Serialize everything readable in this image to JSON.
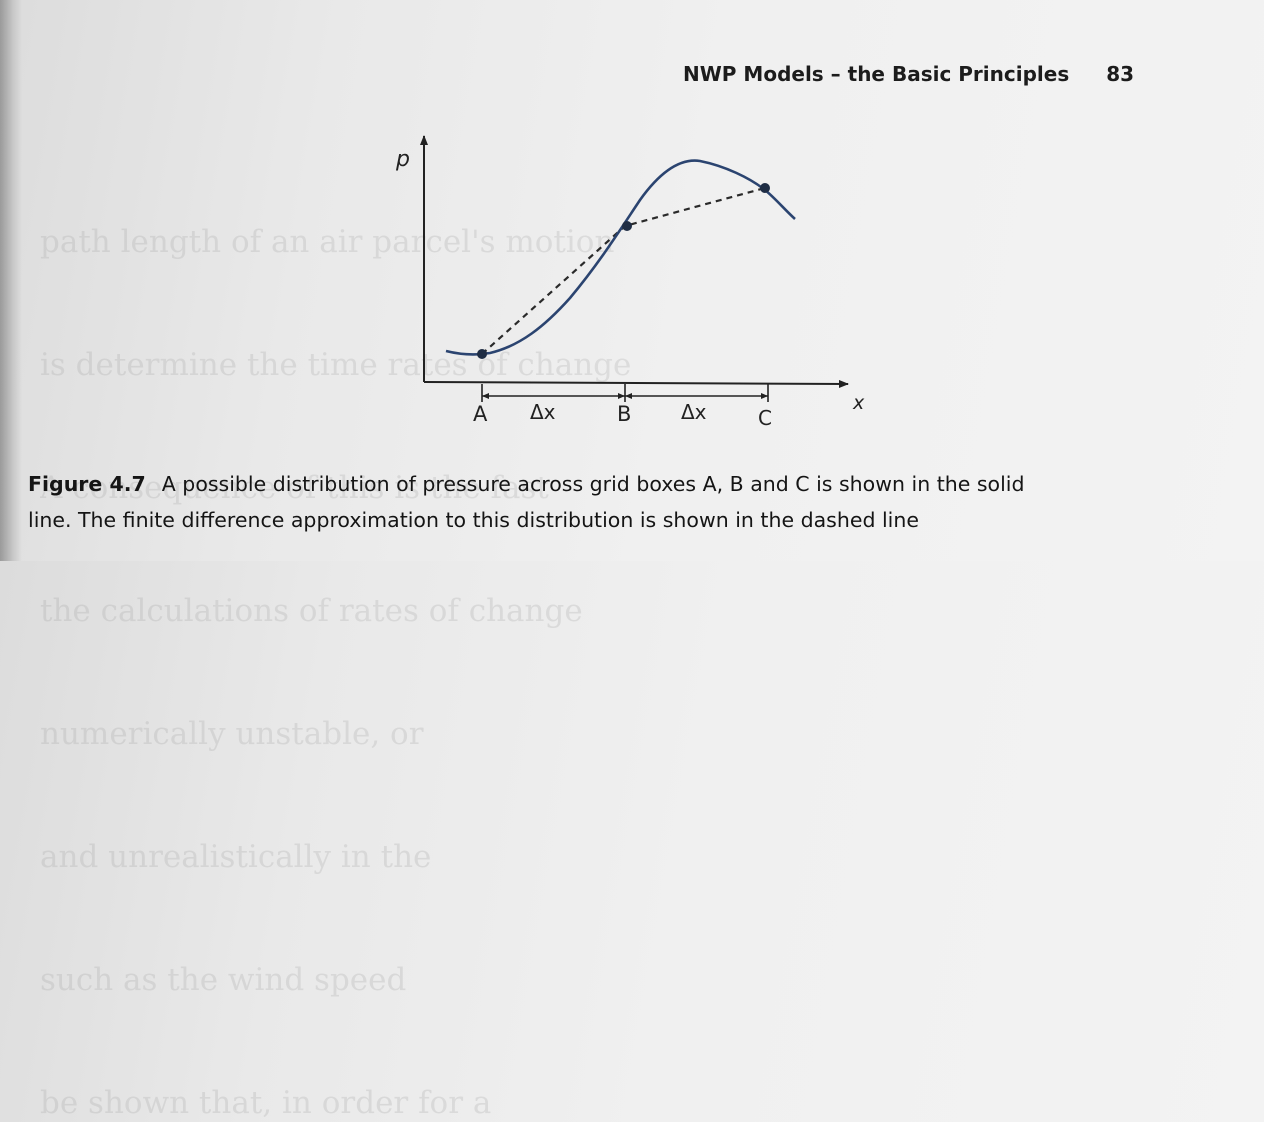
{
  "header": {
    "title": "NWP Models – the Basic Principles",
    "page_number": "83"
  },
  "bleed_through": [
    "path length of an air parcel's motion",
    "is determine the time rates of change",
    "A consequence of this is the fast",
    "the calculations of rates of change",
    "numerically unstable, or",
    "and unrealistically in the",
    "such as the wind speed",
    "be shown that, in order for a"
  ],
  "figure": {
    "y_axis_label": "p",
    "x_axis_label": "x",
    "points": [
      "A",
      "B",
      "C"
    ],
    "spacing_label": "Δx"
  },
  "caption": {
    "label": "Figure 4.7",
    "text_line1": "A possible distribution of pressure across grid boxes A, B and C is shown in the solid",
    "text_line2": "line. The finite difference approximation to this distribution is shown in the dashed line"
  }
}
